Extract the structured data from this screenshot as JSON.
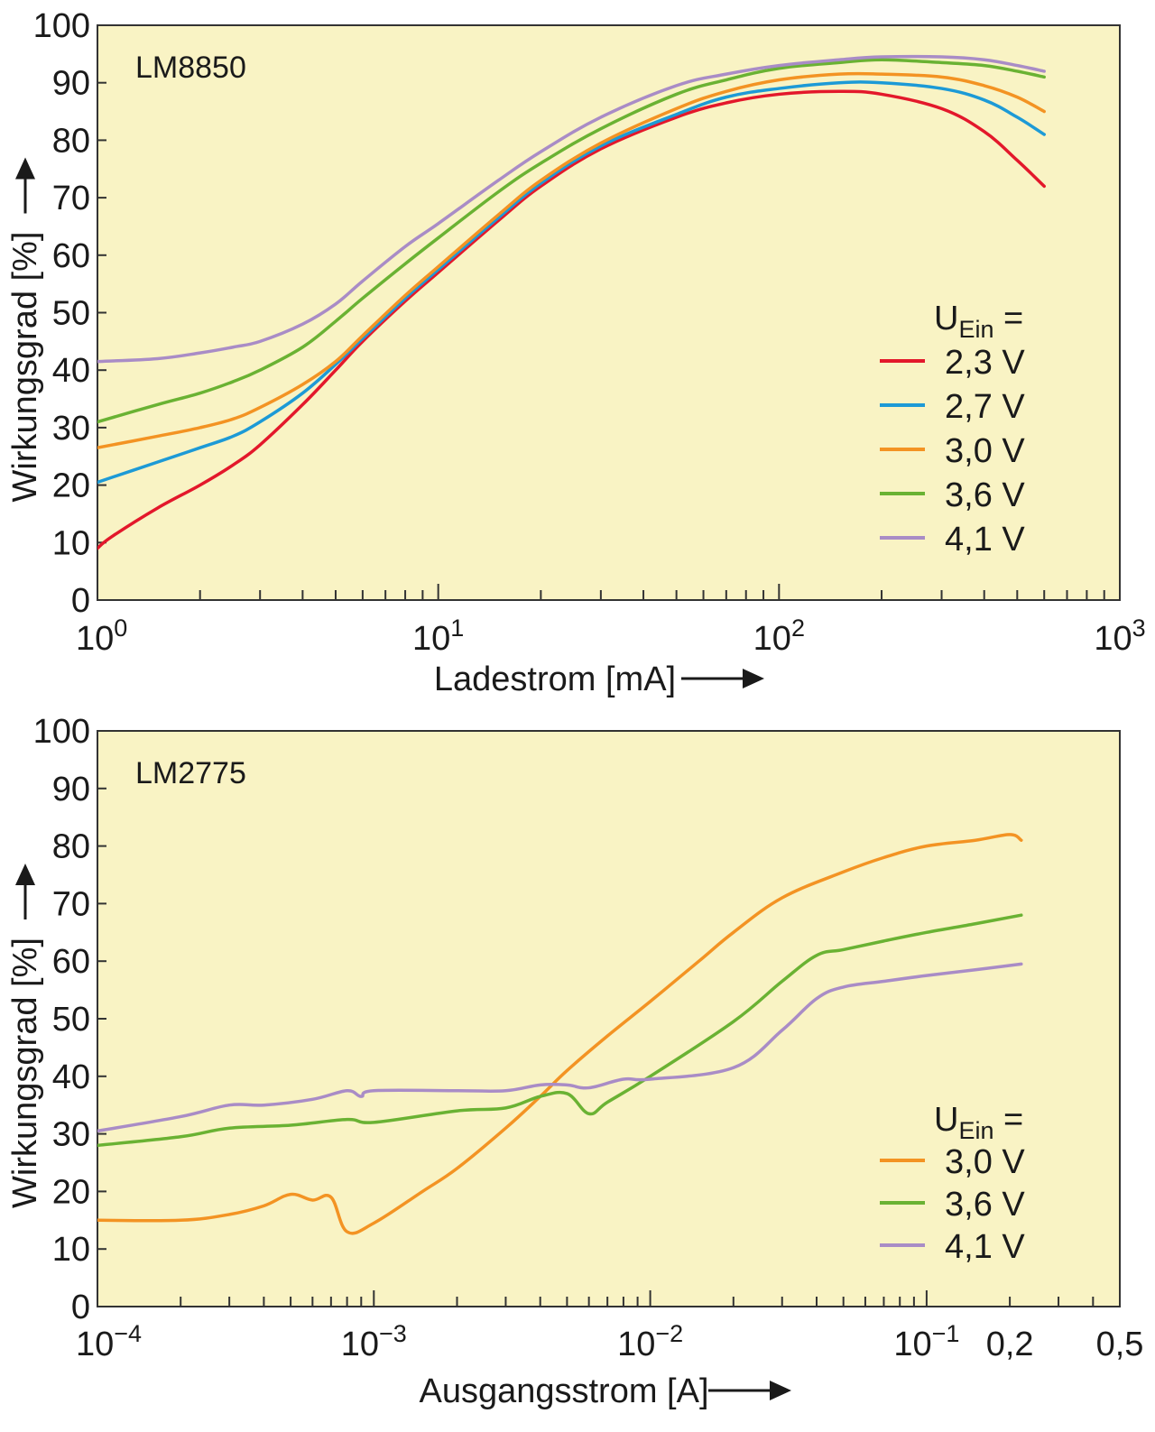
{
  "chart_data": [
    {
      "type": "line",
      "title": "LM8850",
      "xlabel": "Ladestrom [mA]",
      "ylabel": "Wirkungsgrad [%]",
      "x_scale": "log",
      "xlim": [
        1,
        1000
      ],
      "ylim": [
        0,
        100
      ],
      "x_ticks": [
        {
          "value": 1,
          "base": "10",
          "exp": "0"
        },
        {
          "value": 10,
          "base": "10",
          "exp": "1"
        },
        {
          "value": 100,
          "base": "10",
          "exp": "2"
        },
        {
          "value": 1000,
          "base": "10",
          "exp": "3"
        }
      ],
      "y_ticks": [
        "0",
        "10",
        "20",
        "30",
        "40",
        "50",
        "60",
        "70",
        "80",
        "90",
        "100"
      ],
      "legend": {
        "title_main": "U",
        "title_sub": "Ein",
        "title_suffix": "=",
        "position": "right"
      },
      "background": "#f9f3c4",
      "series": [
        {
          "name": "2,3 V",
          "color": "#e3182b",
          "x": [
            1,
            1.1,
            1.5,
            2,
            2.5,
            3,
            4,
            5,
            6,
            8,
            10,
            15,
            20,
            30,
            50,
            70,
            100,
            150,
            200,
            300,
            400,
            500,
            600
          ],
          "y": [
            9,
            11,
            16,
            20,
            23.5,
            27,
            34,
            40,
            45,
            52,
            57,
            66,
            72,
            78.5,
            84,
            86.5,
            88,
            88.5,
            88,
            85.5,
            81.5,
            76.5,
            72
          ]
        },
        {
          "name": "2,7 V",
          "color": "#1d9ad6",
          "x": [
            1,
            1.5,
            2,
            2.5,
            3,
            4,
            5,
            6,
            8,
            10,
            15,
            20,
            30,
            50,
            70,
            100,
            150,
            200,
            300,
            400,
            500,
            600
          ],
          "y": [
            20.5,
            24,
            26.5,
            28.5,
            31,
            36,
            41,
            45.5,
            52.5,
            57.5,
            66.5,
            72.5,
            79,
            84.5,
            87.5,
            89,
            90,
            90,
            89,
            87,
            84,
            81
          ]
        },
        {
          "name": "3,0 V",
          "color": "#f39323",
          "x": [
            1,
            1.5,
            2,
            2.5,
            3,
            4,
            5,
            6,
            8,
            10,
            15,
            20,
            30,
            50,
            70,
            100,
            150,
            200,
            300,
            400,
            500,
            600
          ],
          "y": [
            26.5,
            28.5,
            30,
            31.5,
            33.5,
            37.5,
            41.5,
            46,
            53,
            58,
            67,
            73,
            79.5,
            85.5,
            88.5,
            90.5,
            91.5,
            91.5,
            91,
            89.5,
            87.5,
            85
          ]
        },
        {
          "name": "3,6 V",
          "color": "#6ab233",
          "x": [
            1,
            1.5,
            2,
            2.5,
            3,
            4,
            5,
            6,
            8,
            10,
            15,
            20,
            30,
            50,
            70,
            100,
            150,
            200,
            300,
            400,
            500,
            600
          ],
          "y": [
            31,
            34,
            36,
            38,
            40,
            44,
            48.5,
            52.5,
            58.5,
            63,
            71,
            76,
            82,
            88,
            90.5,
            92.5,
            93.5,
            94,
            93.5,
            93,
            92,
            91
          ]
        },
        {
          "name": "4,1 V",
          "color": "#a98cc6",
          "x": [
            1,
            1.5,
            2,
            2.5,
            3,
            4,
            5,
            6,
            8,
            10,
            15,
            20,
            30,
            50,
            70,
            100,
            150,
            200,
            300,
            400,
            500,
            600
          ],
          "y": [
            41.5,
            42,
            43,
            44,
            45,
            48,
            51.5,
            55.5,
            61.5,
            65.5,
            73,
            78,
            84,
            89.5,
            91.5,
            93,
            94,
            94.5,
            94.5,
            94,
            93,
            92
          ]
        }
      ]
    },
    {
      "type": "line",
      "title": "LM2775",
      "xlabel": "Ausgangsstrom [A]",
      "ylabel": "Wirkungsgrad [%]",
      "x_scale": "log",
      "xlim": [
        0.0001,
        0.5
      ],
      "ylim": [
        0,
        100
      ],
      "x_ticks": [
        {
          "value": 0.0001,
          "base": "10",
          "exp": "−4"
        },
        {
          "value": 0.001,
          "base": "10",
          "exp": "−3"
        },
        {
          "value": 0.01,
          "base": "10",
          "exp": "−2"
        },
        {
          "value": 0.1,
          "base": "10",
          "exp": "−1"
        },
        {
          "value": 0.2,
          "base": "0,2",
          "exp": ""
        },
        {
          "value": 0.5,
          "base": "0,5",
          "exp": ""
        }
      ],
      "y_ticks": [
        "0",
        "10",
        "20",
        "30",
        "40",
        "50",
        "60",
        "70",
        "80",
        "90",
        "100"
      ],
      "legend": {
        "title_main": "U",
        "title_sub": "Ein",
        "title_suffix": "=",
        "position": "right"
      },
      "background": "#f9f3c4",
      "series": [
        {
          "name": "3,0 V",
          "color": "#f39323",
          "x": [
            0.0001,
            0.0002,
            0.0003,
            0.0004,
            0.0005,
            0.0006,
            0.0007,
            0.0008,
            0.001,
            0.0015,
            0.002,
            0.003,
            0.004,
            0.005,
            0.007,
            0.01,
            0.015,
            0.02,
            0.03,
            0.05,
            0.07,
            0.1,
            0.15,
            0.2,
            0.22
          ],
          "y": [
            15,
            15,
            16,
            17.5,
            19.5,
            18.5,
            19,
            13,
            14.5,
            20,
            24,
            31,
            36.5,
            41,
            47,
            53,
            60,
            65,
            71,
            75.5,
            78,
            80,
            81,
            82,
            81
          ]
        },
        {
          "name": "3,6 V",
          "color": "#6ab233",
          "x": [
            0.0001,
            0.0002,
            0.0003,
            0.0005,
            0.0008,
            0.001,
            0.002,
            0.003,
            0.004,
            0.005,
            0.006,
            0.007,
            0.01,
            0.02,
            0.03,
            0.04,
            0.05,
            0.07,
            0.1,
            0.15,
            0.22
          ],
          "y": [
            28,
            29.5,
            31,
            31.5,
            32.5,
            32,
            34,
            34.5,
            36.5,
            37,
            33.5,
            35.5,
            40,
            49.5,
            56.5,
            61,
            62,
            63.5,
            65,
            66.5,
            68
          ]
        },
        {
          "name": "4,1 V",
          "color": "#a98cc6",
          "x": [
            0.0001,
            0.0002,
            0.0003,
            0.0004,
            0.0006,
            0.0008,
            0.0009,
            0.001,
            0.002,
            0.003,
            0.004,
            0.005,
            0.006,
            0.008,
            0.01,
            0.02,
            0.03,
            0.04,
            0.05,
            0.07,
            0.1,
            0.15,
            0.22
          ],
          "y": [
            30.5,
            33,
            35,
            35,
            36,
            37.5,
            36.5,
            37.5,
            37.5,
            37.5,
            38.5,
            38.5,
            38,
            39.5,
            39.5,
            41.5,
            48,
            53.5,
            55.5,
            56.5,
            57.5,
            58.5,
            59.5
          ]
        }
      ]
    }
  ]
}
